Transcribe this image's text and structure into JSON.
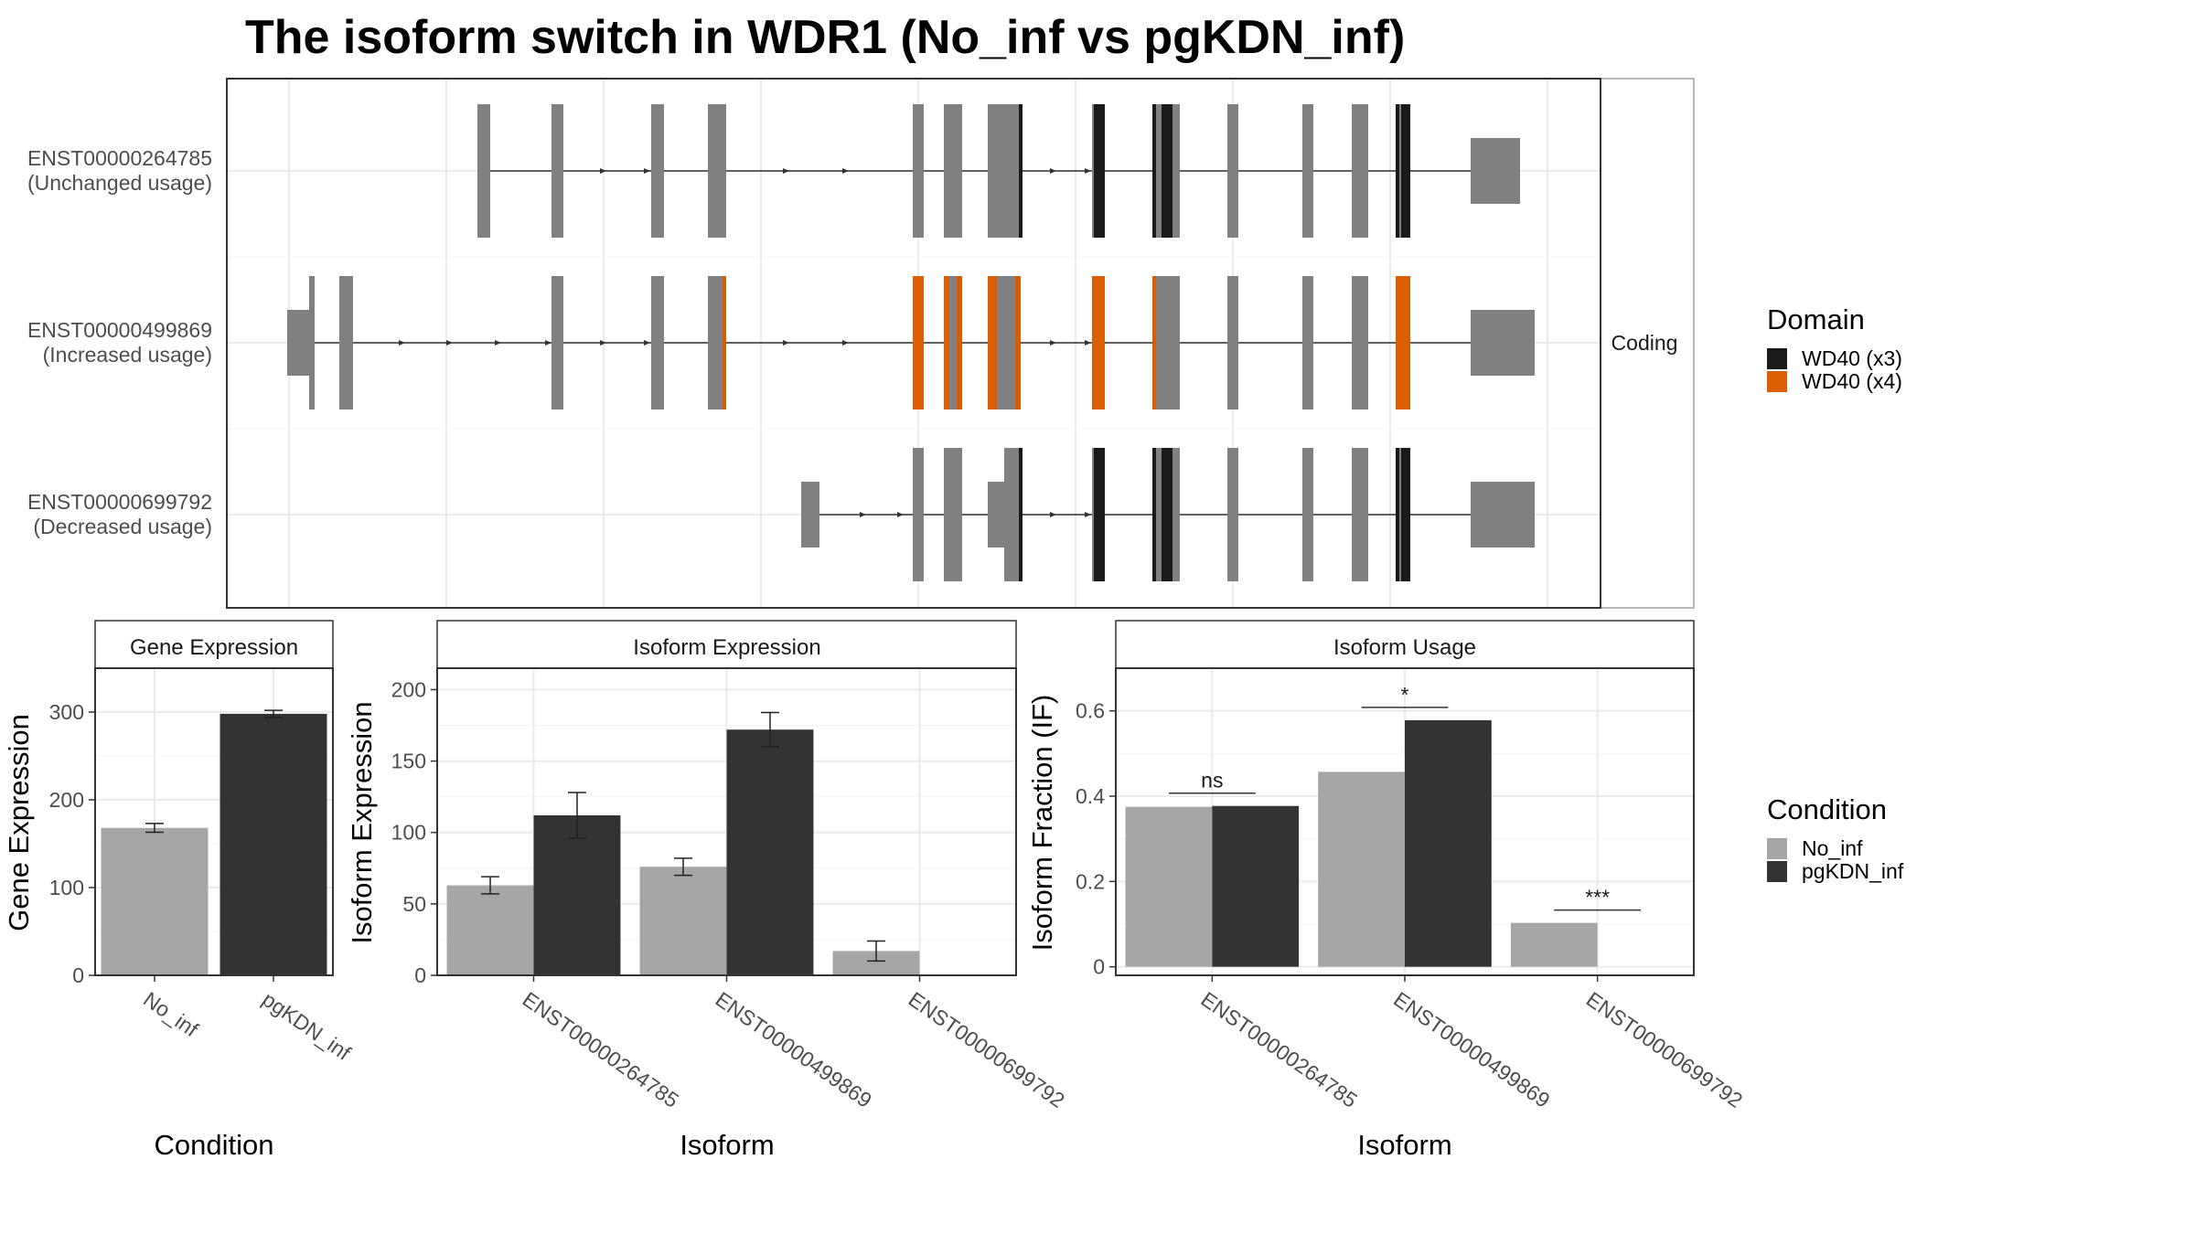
{
  "title": "The isoform switch in WDR1 (No_inf vs pgKDN_inf)",
  "colors": {
    "exon": "#808080",
    "wd40_x3": "#1a1a1a",
    "wd40_x4": "#d95f02",
    "no_inf": "#a6a6a6",
    "pgkdn_inf": "#333333"
  },
  "chart_data": [
    {
      "type": "transcript_structure",
      "strip_label": "Coding",
      "legend_title": "Domain",
      "legend": [
        {
          "label": "WD40 (x3)",
          "color": "#1a1a1a"
        },
        {
          "label": "WD40 (x4)",
          "color": "#d95f02"
        }
      ],
      "transcripts": [
        {
          "id": "ENST00000264785",
          "usage": "(Unchanged usage)"
        },
        {
          "id": "ENST00000499869",
          "usage": "(Increased usage)"
        },
        {
          "id": "ENST00000699792",
          "usage": "(Decreased usage)"
        }
      ]
    },
    {
      "type": "bar",
      "title": "Gene Expression",
      "xlabel": "Condition",
      "ylabel": "Gene Expression",
      "categories": [
        "No_inf",
        "pgKDN_inf"
      ],
      "values": [
        168,
        298
      ],
      "errors": [
        5,
        4
      ],
      "ylim": [
        0,
        350
      ],
      "yticks": [
        0,
        100,
        200,
        300
      ],
      "legend": "none"
    },
    {
      "type": "bar",
      "title": "Isoform Expression",
      "xlabel": "Isoform",
      "ylabel": "Isoform Expression",
      "categories": [
        "ENST00000264785",
        "ENST00000499869",
        "ENST00000699792"
      ],
      "series": [
        {
          "name": "No_inf",
          "values": [
            63,
            76,
            17
          ],
          "errors": [
            6,
            6,
            7
          ]
        },
        {
          "name": "pgKDN_inf",
          "values": [
            112,
            172,
            0
          ],
          "errors": [
            16,
            12,
            0
          ]
        }
      ],
      "ylim": [
        0,
        215
      ],
      "yticks": [
        0,
        50,
        100,
        150,
        200
      ]
    },
    {
      "type": "bar",
      "title": "Isoform Usage",
      "xlabel": "Isoform",
      "ylabel": "Isoform Fraction (IF)",
      "categories": [
        "ENST00000264785",
        "ENST00000499869",
        "ENST00000699792"
      ],
      "series": [
        {
          "name": "No_inf",
          "values": [
            0.375,
            0.457,
            0.103
          ]
        },
        {
          "name": "pgKDN_inf",
          "values": [
            0.377,
            0.578,
            0.0
          ]
        }
      ],
      "significance": [
        "ns",
        "*",
        "***"
      ],
      "ylim": [
        -0.02,
        0.7
      ],
      "yticks": [
        0.0,
        0.2,
        0.4,
        0.6
      ],
      "legend_title": "Condition",
      "legend": [
        {
          "label": "No_inf",
          "color": "#a6a6a6"
        },
        {
          "label": "pgKDN_inf",
          "color": "#333333"
        }
      ]
    }
  ]
}
